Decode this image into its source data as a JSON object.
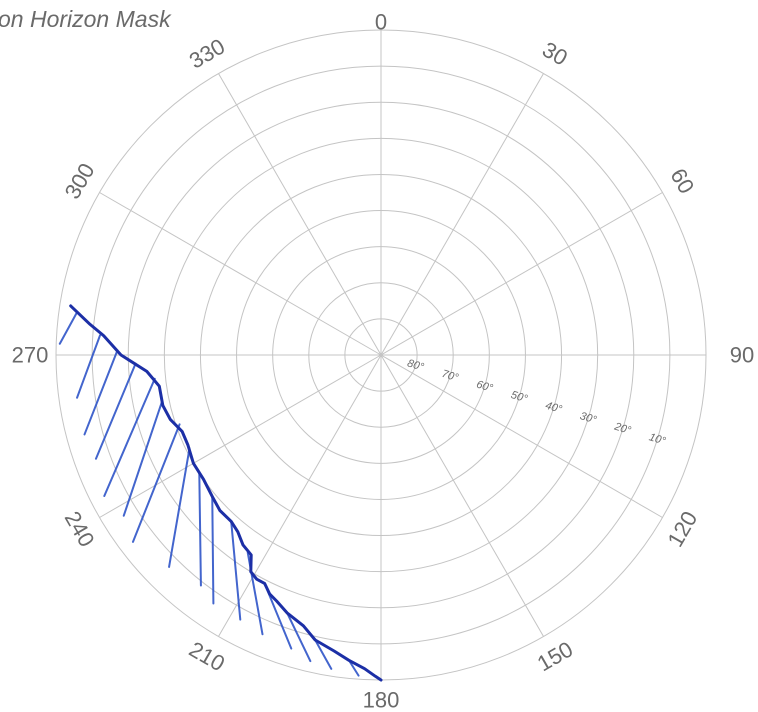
{
  "title": "on Horizon Mask",
  "colors": {
    "grid": "#c4c4c4",
    "labels": "#6a6a6a",
    "horizon_line": "#1c2fa6",
    "hatch": "#2f55c8"
  },
  "azimuth_labels": [
    "0",
    "30",
    "60",
    "90",
    "120",
    "150",
    "180",
    "210",
    "240",
    "270",
    "300",
    "330"
  ],
  "elevation_labels": [
    "80°",
    "70°",
    "60°",
    "50°",
    "40°",
    "30°",
    "20°",
    "10°"
  ],
  "chart_data": {
    "type": "polar",
    "angular_axis": {
      "unit": "degrees azimuth",
      "direction": "clockwise",
      "zero": "top"
    },
    "radial_axis": {
      "range": [
        90,
        0
      ],
      "rings": [
        90,
        80,
        70,
        60,
        50,
        40,
        30,
        20,
        10,
        0
      ]
    },
    "horizon_mask": [
      {
        "az": 180,
        "el": 0
      },
      {
        "az": 181,
        "el": 1
      },
      {
        "az": 183,
        "el": 3
      },
      {
        "az": 186,
        "el": 5
      },
      {
        "az": 189,
        "el": 7
      },
      {
        "az": 193,
        "el": 9
      },
      {
        "az": 196,
        "el": 12
      },
      {
        "az": 200,
        "el": 14
      },
      {
        "az": 203,
        "el": 16
      },
      {
        "az": 205,
        "el": 17
      },
      {
        "az": 207,
        "el": 19
      },
      {
        "az": 209,
        "el": 19
      },
      {
        "az": 211,
        "el": 20
      },
      {
        "az": 213,
        "el": 24
      },
      {
        "az": 216,
        "el": 25
      },
      {
        "az": 219,
        "el": 27
      },
      {
        "az": 222,
        "el": 28
      },
      {
        "az": 226,
        "el": 28
      },
      {
        "az": 230,
        "el": 29
      },
      {
        "az": 235,
        "el": 30
      },
      {
        "az": 240,
        "el": 30
      },
      {
        "az": 245,
        "el": 31
      },
      {
        "az": 249,
        "el": 31
      },
      {
        "az": 253,
        "el": 29
      },
      {
        "az": 257,
        "el": 28
      },
      {
        "az": 262,
        "el": 28
      },
      {
        "az": 266,
        "el": 25
      },
      {
        "az": 270,
        "el": 18
      },
      {
        "az": 274,
        "el": 13
      },
      {
        "az": 276,
        "el": 9
      },
      {
        "az": 279,
        "el": 3
      }
    ],
    "hatch_lines": [
      {
        "top": {
          "az": 278,
          "el": 5
        },
        "bottom": {
          "az": 272,
          "el": 1
        }
      },
      {
        "top": {
          "az": 274,
          "el": 12
        },
        "bottom": {
          "az": 262,
          "el": 5
        }
      },
      {
        "top": {
          "az": 271,
          "el": 17
        },
        "bottom": {
          "az": 255,
          "el": 5
        }
      },
      {
        "top": {
          "az": 268,
          "el": 22
        },
        "bottom": {
          "az": 250,
          "el": 6
        }
      },
      {
        "top": {
          "az": 264,
          "el": 27
        },
        "bottom": {
          "az": 243,
          "el": 4
        }
      },
      {
        "top": {
          "az": 258,
          "el": 28
        },
        "bottom": {
          "az": 238,
          "el": 6
        }
      },
      {
        "top": {
          "az": 251,
          "el": 31
        },
        "bottom": {
          "az": 233,
          "el": 4
        }
      },
      {
        "top": {
          "az": 244,
          "el": 31
        },
        "bottom": {
          "az": 225,
          "el": 7
        }
      },
      {
        "top": {
          "az": 237,
          "el": 30
        },
        "bottom": {
          "az": 218,
          "el": 9
        }
      },
      {
        "top": {
          "az": 230,
          "el": 29
        },
        "bottom": {
          "az": 214,
          "el": 7
        }
      },
      {
        "top": {
          "az": 222,
          "el": 28
        },
        "bottom": {
          "az": 208,
          "el": 7
        }
      },
      {
        "top": {
          "az": 214,
          "el": 24
        },
        "bottom": {
          "az": 203,
          "el": 6
        }
      },
      {
        "top": {
          "az": 207,
          "el": 19
        },
        "bottom": {
          "az": 197,
          "el": 5
        }
      },
      {
        "top": {
          "az": 200,
          "el": 14
        },
        "bottom": {
          "az": 193,
          "el": 3
        }
      },
      {
        "top": {
          "az": 193,
          "el": 9
        },
        "bottom": {
          "az": 189,
          "el": 2
        }
      },
      {
        "top": {
          "az": 186,
          "el": 5
        },
        "bottom": {
          "az": 184,
          "el": 1
        }
      }
    ]
  }
}
